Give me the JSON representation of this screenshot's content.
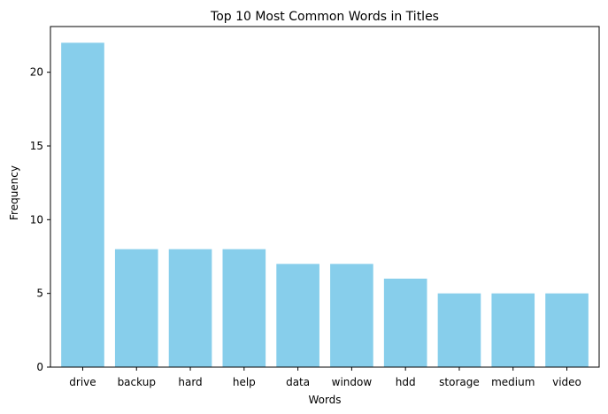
{
  "chart_data": {
    "type": "bar",
    "title": "Top 10 Most Common Words in Titles",
    "xlabel": "Words",
    "ylabel": "Frequency",
    "categories": [
      "drive",
      "backup",
      "hard",
      "help",
      "data",
      "window",
      "hdd",
      "storage",
      "medium",
      "video"
    ],
    "values": [
      22,
      8,
      8,
      8,
      7,
      7,
      6,
      5,
      5,
      5
    ],
    "ylim": [
      0,
      23.1
    ],
    "yticks": [
      0,
      5,
      10,
      15,
      20
    ],
    "bar_color": "#87ceeb",
    "grid": false,
    "legend": "none"
  }
}
